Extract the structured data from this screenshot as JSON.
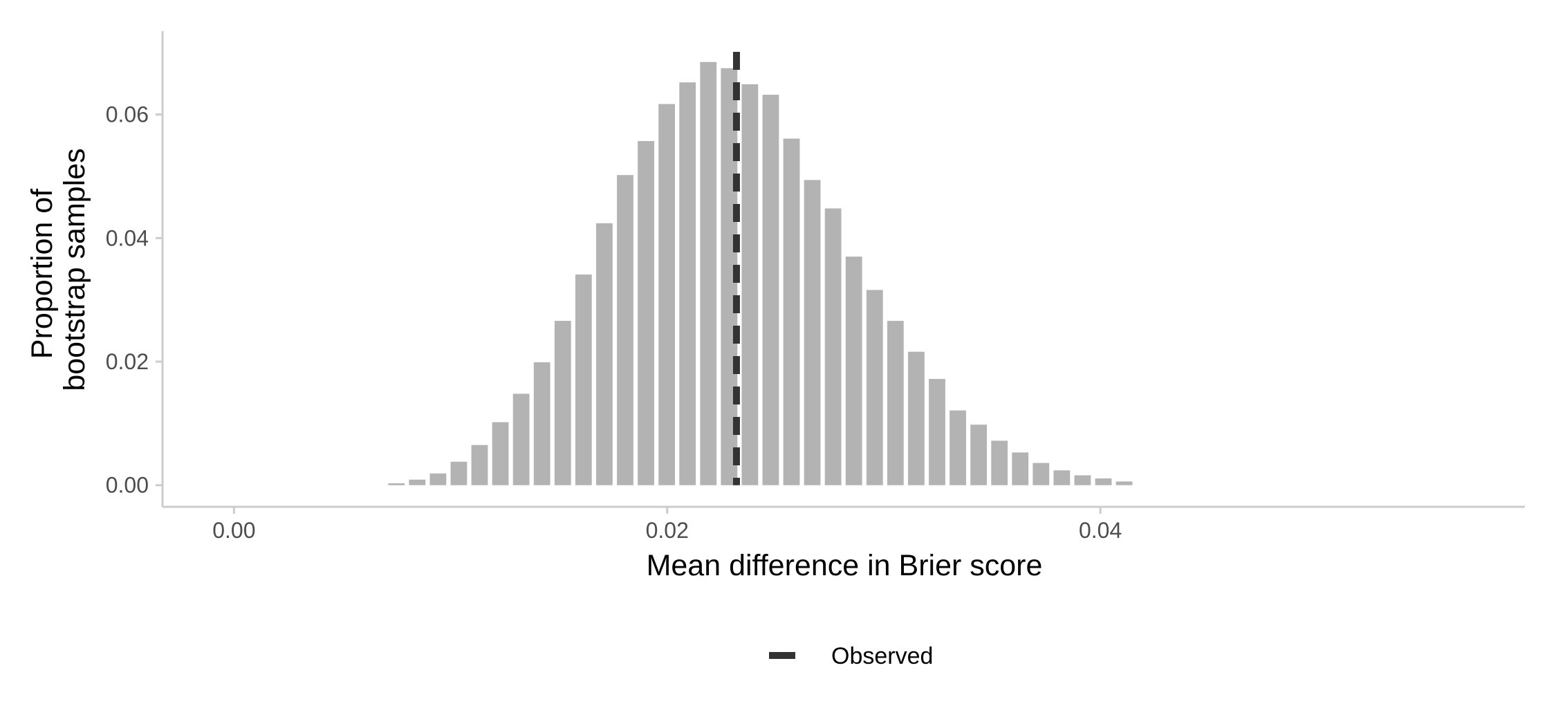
{
  "chart_data": {
    "type": "bar",
    "xlabel": "Mean difference in Brier score",
    "ylabel_lines": [
      "Proportion of",
      "bootstrap samples"
    ],
    "xlim": [
      -0.0033,
      0.0596
    ],
    "ylim": [
      -0.0035,
      0.0735
    ],
    "x_ticks": [
      0.0,
      0.02,
      0.04
    ],
    "x_tick_labels": [
      "0.00",
      "0.02",
      "0.04"
    ],
    "y_ticks": [
      0.0,
      0.02,
      0.04,
      0.06
    ],
    "y_tick_labels": [
      "0.00",
      "0.02",
      "0.04",
      "0.06"
    ],
    "bin_width": 0.00096,
    "x": [
      0.0075,
      0.00846,
      0.00942,
      0.01038,
      0.01134,
      0.0123,
      0.01326,
      0.01422,
      0.01518,
      0.01614,
      0.0171,
      0.01806,
      0.01902,
      0.01998,
      0.02094,
      0.0219,
      0.02286,
      0.02382,
      0.02478,
      0.02574,
      0.0267,
      0.02766,
      0.02862,
      0.02958,
      0.03054,
      0.0315,
      0.03246,
      0.03342,
      0.03438,
      0.03534,
      0.0363,
      0.03726,
      0.03822,
      0.03918,
      0.04014,
      0.0411
    ],
    "values": [
      0.0003,
      0.0009,
      0.0019,
      0.0038,
      0.0065,
      0.0102,
      0.0148,
      0.0199,
      0.0266,
      0.0341,
      0.0424,
      0.0502,
      0.0557,
      0.0617,
      0.0652,
      0.0685,
      0.0675,
      0.0649,
      0.0632,
      0.0561,
      0.0494,
      0.0448,
      0.037,
      0.0316,
      0.0266,
      0.0216,
      0.0172,
      0.0121,
      0.0098,
      0.0072,
      0.0053,
      0.0036,
      0.0024,
      0.0016,
      0.0011,
      0.0006
    ],
    "observed": 0.0232,
    "legend": {
      "position": "bottom",
      "entries": [
        {
          "label": "Observed",
          "style": "dashed"
        }
      ]
    },
    "colors": {
      "bar": "#b3b3b3",
      "observed_line": "#333333",
      "axis_line": "#cccccc"
    },
    "grid": false
  }
}
